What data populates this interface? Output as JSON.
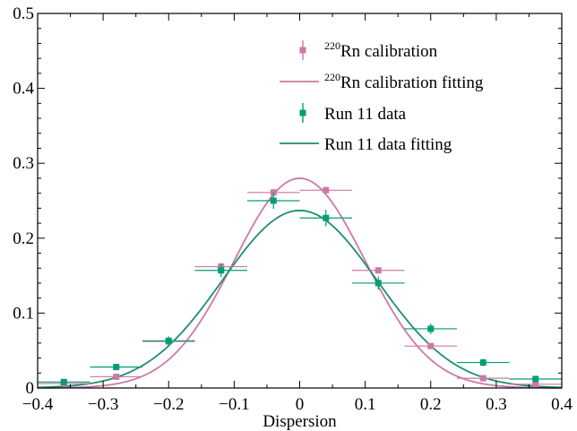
{
  "chart_data": {
    "type": "scatter",
    "title": "",
    "xlabel": "Dispersion",
    "ylabel": "",
    "xlim": [
      -0.4,
      0.4
    ],
    "ylim": [
      0,
      0.5
    ],
    "grid": false,
    "legend_position": "top-right",
    "x_ticks": [
      {
        "value": -0.4,
        "label": "−0.4"
      },
      {
        "value": -0.3,
        "label": "−0.3"
      },
      {
        "value": -0.2,
        "label": "−0.2"
      },
      {
        "value": -0.1,
        "label": "−0.1"
      },
      {
        "value": 0,
        "label": "0"
      },
      {
        "value": 0.1,
        "label": "0.1"
      },
      {
        "value": 0.2,
        "label": "0.2"
      },
      {
        "value": 0.3,
        "label": "0.3"
      },
      {
        "value": 0.4,
        "label": "0.4"
      }
    ],
    "y_ticks": [
      {
        "value": 0,
        "label": "0"
      },
      {
        "value": 0.1,
        "label": "0.1"
      },
      {
        "value": 0.2,
        "label": "0.2"
      },
      {
        "value": 0.3,
        "label": "0.3"
      },
      {
        "value": 0.4,
        "label": "0.4"
      },
      {
        "value": 0.5,
        "label": "0.5"
      }
    ],
    "series": [
      {
        "name_sup": "220",
        "name_main": "Rn calibration",
        "kind": "points",
        "color": "#cc79a7",
        "x": [
          -0.36,
          -0.28,
          -0.2,
          -0.12,
          -0.04,
          0.04,
          0.12,
          0.2,
          0.28,
          0.36
        ],
        "y": [
          0.006,
          0.015,
          0.062,
          0.162,
          0.261,
          0.264,
          0.157,
          0.056,
          0.013,
          0.005
        ],
        "x_err": 0.04,
        "y_err": [
          0.002,
          0.002,
          0.004,
          0.005,
          0.005,
          0.005,
          0.004,
          0.003,
          0.002,
          0.002
        ]
      },
      {
        "name_sup": "220",
        "name_main": "Rn calibration fitting",
        "kind": "line",
        "color": "#cc79a7",
        "amplitude": 0.28,
        "mean": 0.0,
        "sigma": 0.1
      },
      {
        "name_sup": "",
        "name_main": "Run 11 data",
        "kind": "points",
        "color": "#009e73",
        "x": [
          -0.36,
          -0.28,
          -0.2,
          -0.12,
          -0.04,
          0.04,
          0.12,
          0.2,
          0.28,
          0.36
        ],
        "y": [
          0.008,
          0.028,
          0.063,
          0.157,
          0.25,
          0.227,
          0.14,
          0.079,
          0.034,
          0.012
        ],
        "x_err": 0.04,
        "y_err": [
          0.003,
          0.004,
          0.006,
          0.009,
          0.011,
          0.011,
          0.009,
          0.007,
          0.005,
          0.003
        ]
      },
      {
        "name_sup": "",
        "name_main": "Run 11 data fitting",
        "kind": "line",
        "color": "#1a8f6e",
        "amplitude": 0.237,
        "mean": 0.0,
        "sigma": 0.118
      }
    ]
  }
}
